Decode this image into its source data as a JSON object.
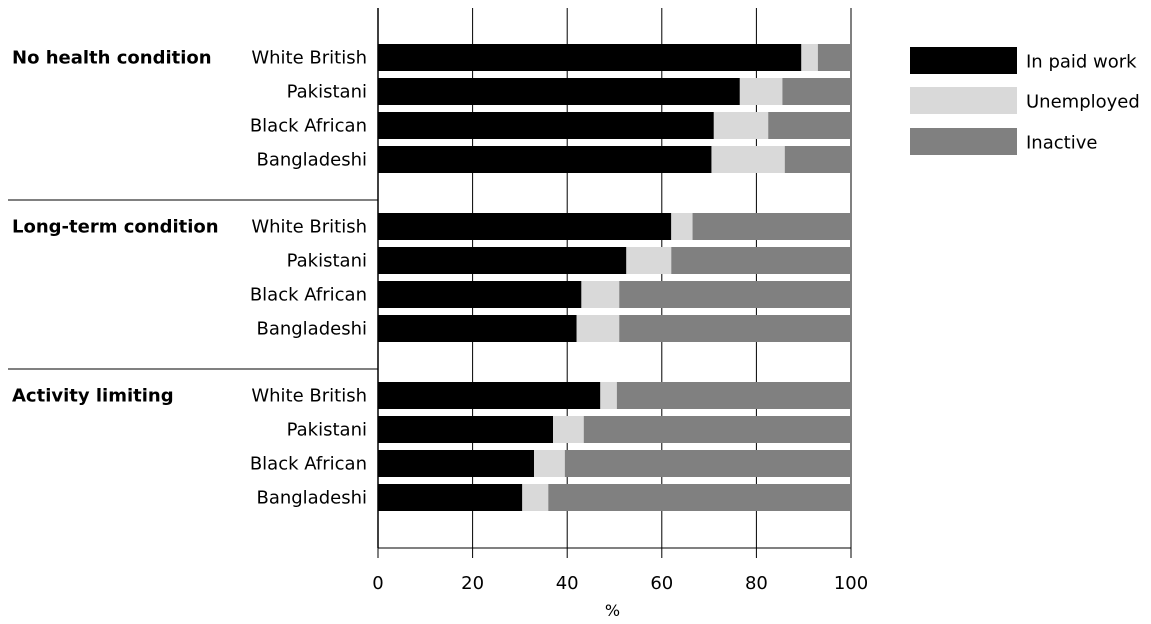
{
  "chart_data": {
    "type": "bar",
    "orientation": "horizontal",
    "stacked": true,
    "xlabel": "%",
    "xlim": [
      0,
      100
    ],
    "x_ticks": [
      0,
      20,
      40,
      60,
      80,
      100
    ],
    "grid": "vertical",
    "legend_position": "right",
    "series_names": [
      "In paid work",
      "Unemployed",
      "Inactive"
    ],
    "series_colors": [
      "#000000",
      "#d9d9d9",
      "#808080"
    ],
    "groups": [
      {
        "name": "No health condition",
        "rows": [
          {
            "category": "White British",
            "values": [
              89.5,
              3.5,
              7
            ]
          },
          {
            "category": "Pakistani",
            "values": [
              76.5,
              9,
              14.5
            ]
          },
          {
            "category": "Black African",
            "values": [
              71,
              11.5,
              17.5
            ]
          },
          {
            "category": "Bangladeshi",
            "values": [
              70.5,
              15.5,
              14
            ]
          }
        ]
      },
      {
        "name": "Long-term condition",
        "rows": [
          {
            "category": "White British",
            "values": [
              62,
              4.5,
              33.5
            ]
          },
          {
            "category": "Pakistani",
            "values": [
              52.5,
              9.5,
              38
            ]
          },
          {
            "category": "Black African",
            "values": [
              43,
              8,
              49
            ]
          },
          {
            "category": "Bangladeshi",
            "values": [
              42,
              9,
              49
            ]
          }
        ]
      },
      {
        "name": "Activity limiting",
        "rows": [
          {
            "category": "White British",
            "values": [
              47,
              3.5,
              49.5
            ]
          },
          {
            "category": "Pakistani",
            "values": [
              37,
              6.5,
              56.5
            ]
          },
          {
            "category": "Black African",
            "values": [
              33,
              6.5,
              60.5
            ]
          },
          {
            "category": "Bangladeshi",
            "values": [
              30.5,
              5.5,
              64
            ]
          }
        ]
      }
    ]
  }
}
